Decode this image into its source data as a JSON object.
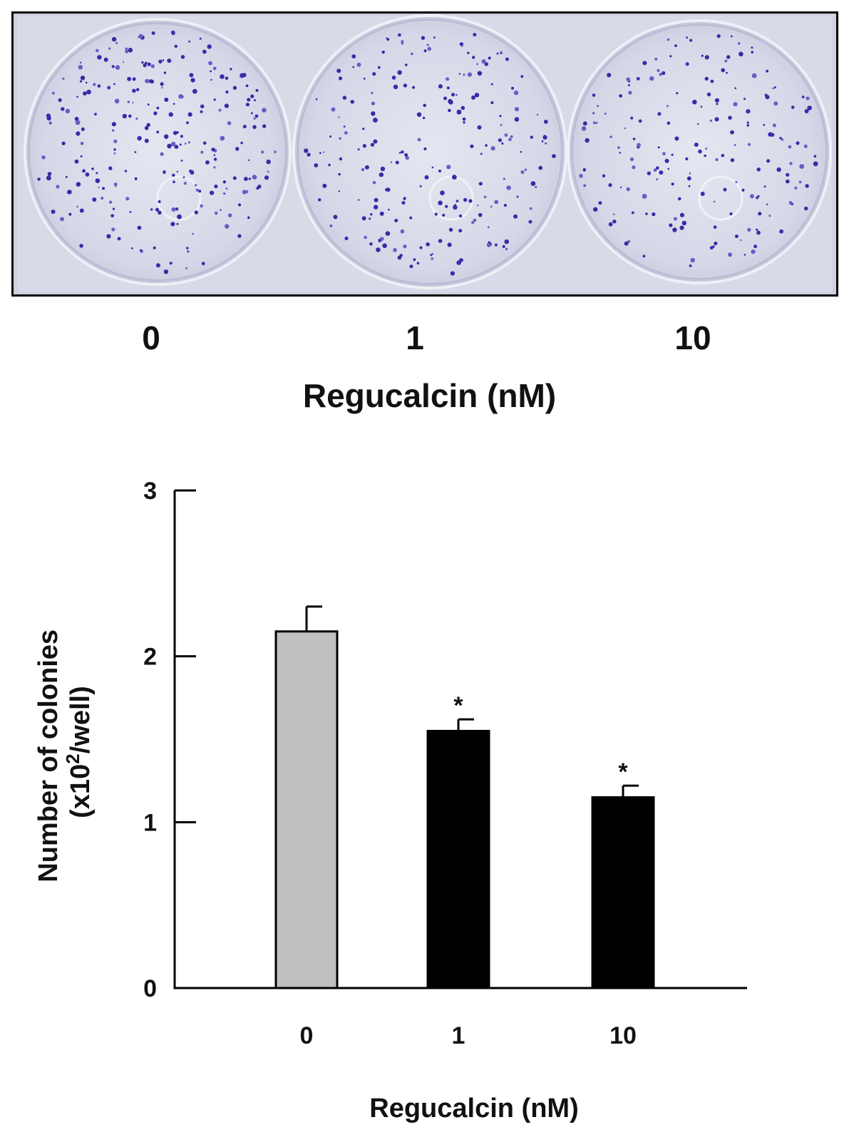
{
  "photo": {
    "dish_labels": [
      "0",
      "1",
      "10"
    ],
    "xlabel": "Regucalcin (nM)"
  },
  "chart_data": {
    "type": "bar",
    "categories": [
      "0",
      "1",
      "10"
    ],
    "values": [
      2.15,
      1.55,
      1.15
    ],
    "errors": [
      0.15,
      0.07,
      0.07
    ],
    "significance": [
      "",
      "*",
      "*"
    ],
    "bar_colors": [
      "#c0c0c0",
      "#000000",
      "#000000"
    ],
    "title": "",
    "xlabel": "Regucalcin (nM)",
    "ylabel_line1": "Number of colonies",
    "ylabel_line2_prefix": "(x10",
    "ylabel_line2_sup": "2",
    "ylabel_line2_suffix": "/well)",
    "ylim": [
      0,
      3
    ],
    "yticks": [
      0,
      1,
      2,
      3
    ],
    "grid": false
  }
}
